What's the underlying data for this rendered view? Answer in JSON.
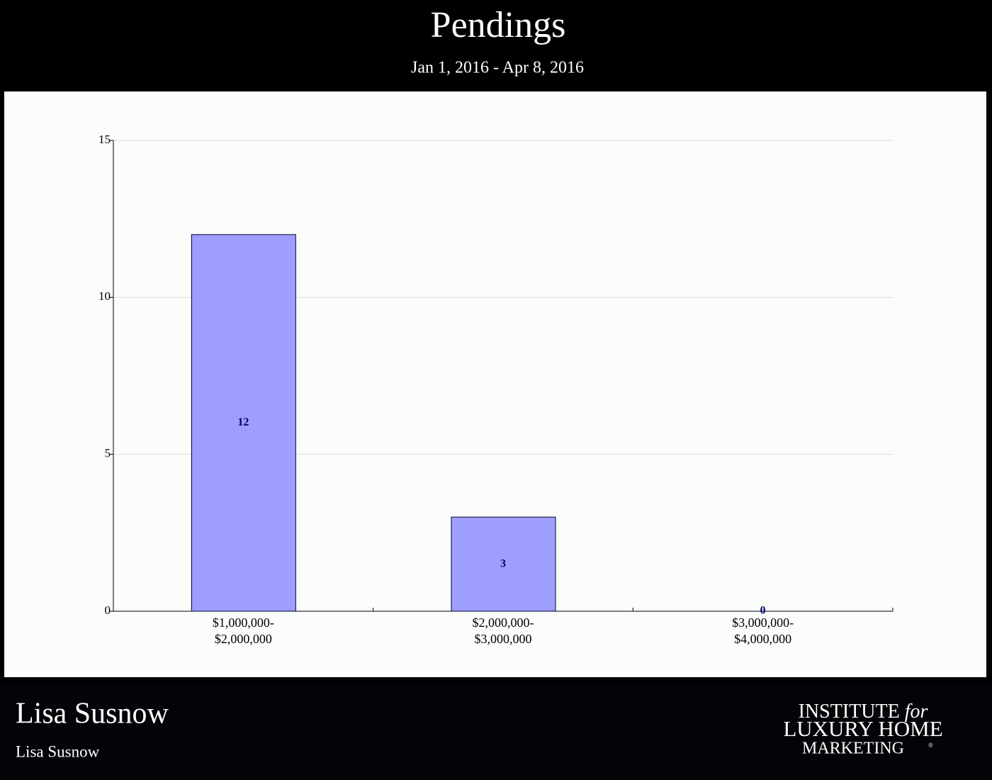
{
  "header": {
    "title": "Pendings",
    "subtitle": "Jan 1, 2016 - Apr 8, 2016"
  },
  "chart_data": {
    "type": "bar",
    "categories": [
      "$1,000,000-\n$2,000,000",
      "$2,000,000-\n$3,000,000",
      "$3,000,000-\n$4,000,000"
    ],
    "values": [
      12,
      3,
      0
    ],
    "color": "#9e9eff",
    "ylim": [
      0,
      15
    ],
    "yticks": [
      0,
      5,
      10,
      15
    ],
    "grid": true
  },
  "footer": {
    "name": "Lisa Susnow",
    "subname": "Lisa Susnow",
    "logo": {
      "line1": "INSTITUTE",
      "line1_italic": "for",
      "line2": "LUXURY HOME",
      "line3": "MARKETING",
      "mark": "®"
    }
  }
}
